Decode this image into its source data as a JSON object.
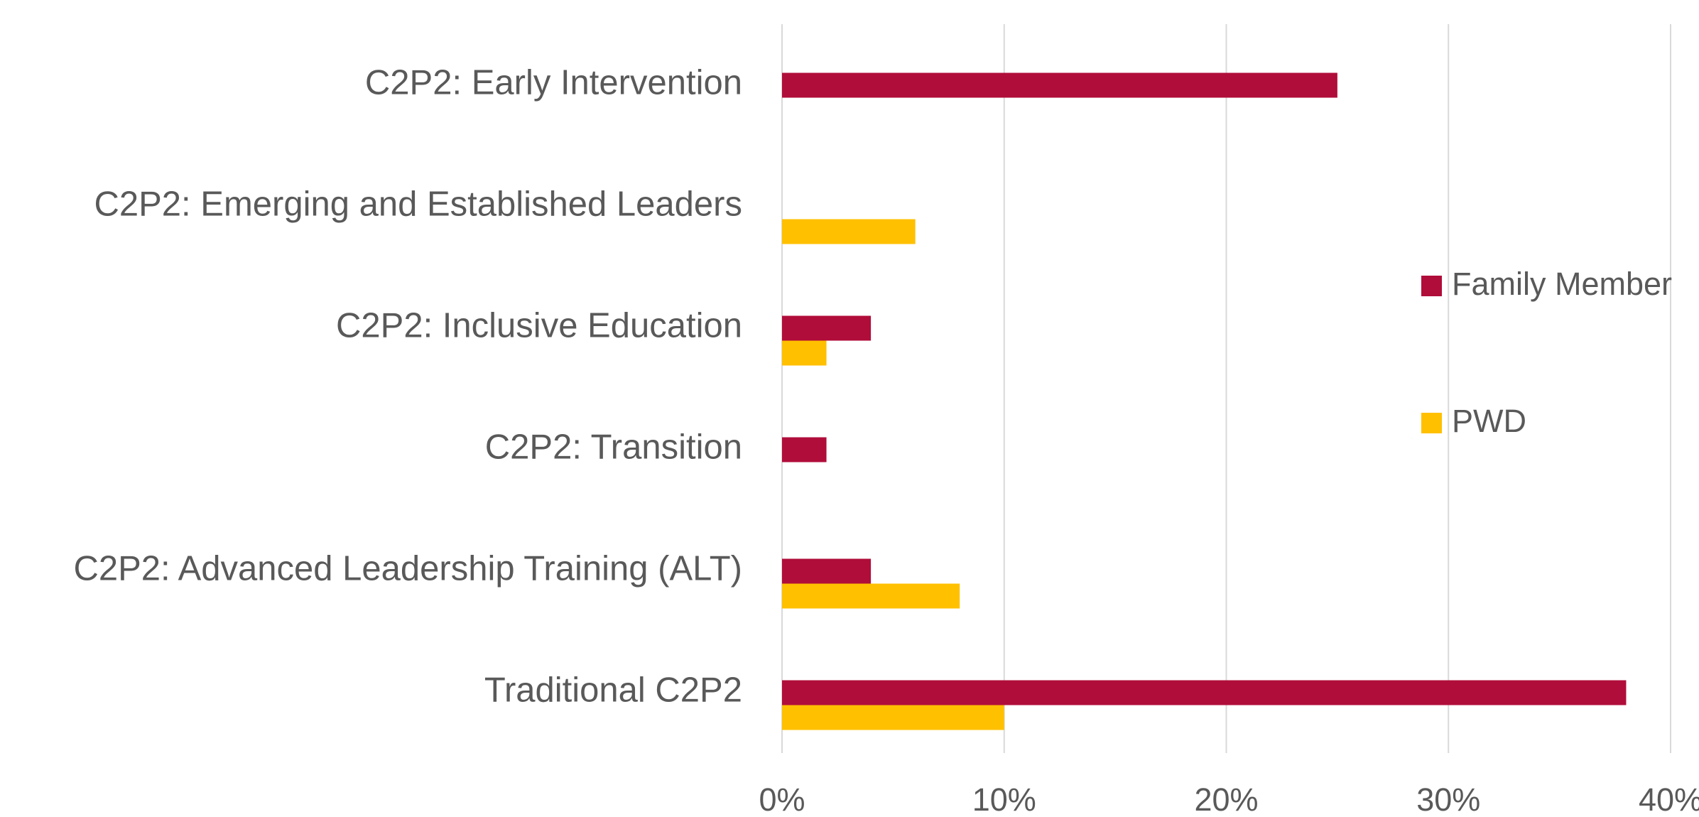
{
  "chart_data": {
    "type": "bar",
    "orientation": "horizontal",
    "categories": [
      "C2P2: Early Intervention",
      "C2P2: Emerging and Established Leaders",
      "C2P2: Inclusive Education",
      "C2P2: Transition",
      "C2P2: Advanced Leadership Training (ALT)",
      "Traditional C2P2"
    ],
    "series": [
      {
        "name": "Family Member",
        "color": "#b00d3a",
        "values": [
          25,
          0,
          4,
          2,
          4,
          38
        ]
      },
      {
        "name": "PWD",
        "color": "#ffc000",
        "values": [
          0,
          6,
          2,
          0,
          8,
          10
        ]
      }
    ],
    "xlim": [
      0,
      40
    ],
    "xticks": [
      {
        "value": 0,
        "label": "0%"
      },
      {
        "value": 10,
        "label": "10%"
      },
      {
        "value": 20,
        "label": "20%"
      },
      {
        "value": 30,
        "label": "30%"
      },
      {
        "value": 40,
        "label": "40%"
      }
    ],
    "grid": true,
    "legend": "right"
  }
}
